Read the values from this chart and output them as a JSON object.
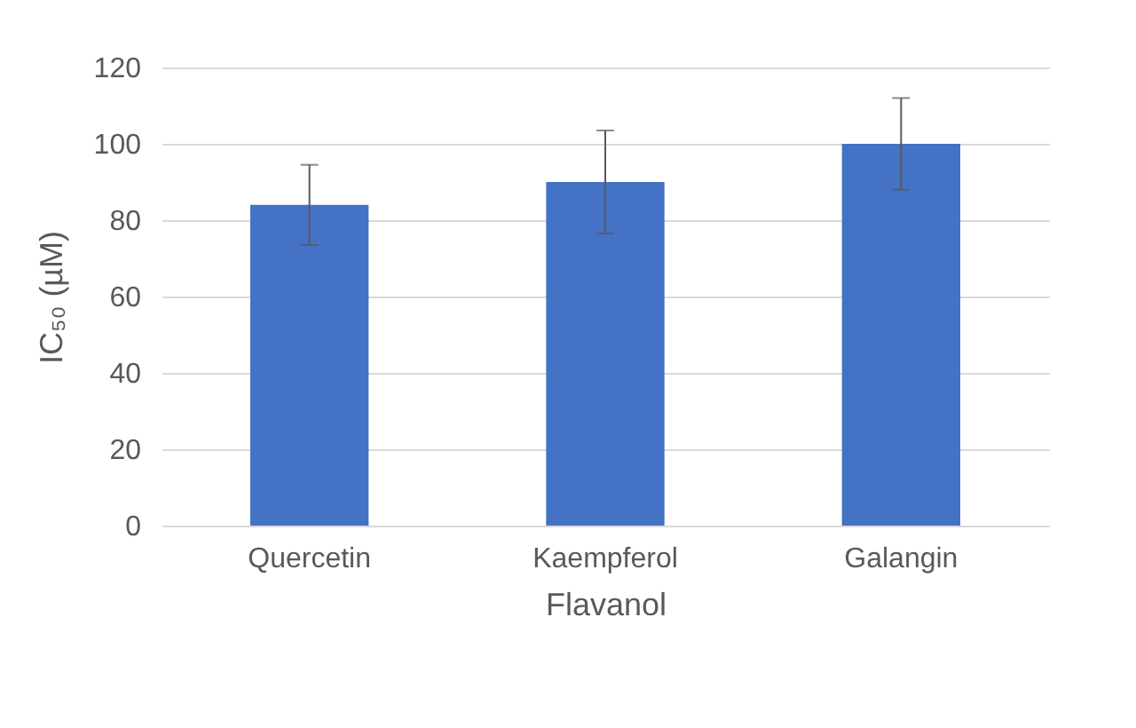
{
  "chart_data": {
    "type": "bar",
    "xlabel": "Flavanol",
    "ylabel": "IC₅₀ (µM)",
    "categories": [
      "Quercetin",
      "Kaempferol",
      "Galangin"
    ],
    "values": [
      84,
      90,
      100
    ],
    "errors": [
      10.5,
      13.5,
      12
    ],
    "color": "#4472c4",
    "ylim": [
      0,
      120
    ],
    "yticks": [
      0,
      20,
      40,
      60,
      80,
      100,
      120
    ],
    "grid": "y"
  }
}
